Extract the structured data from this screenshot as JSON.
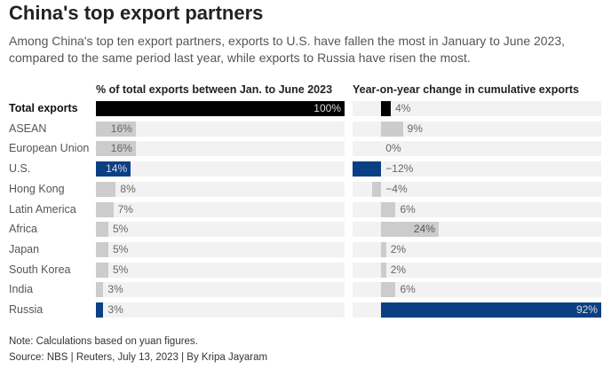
{
  "title": "China's top export partners",
  "subtitle": "Among China's top ten export partners, exports to U.S. have fallen the most in January to June 2023, compared to the same period last year, while exports to Russia have risen the most.",
  "note": "Note: Calculations based on yuan figures.",
  "source": "Source: NBS | Reuters, July 13, 2023 | By Kripa Jayaram",
  "colors": {
    "total": "#000000",
    "highlight": "#0b3f84",
    "default": "#cccccc",
    "background": "#f2f2f2"
  },
  "chart_data": [
    {
      "type": "bar",
      "orientation": "horizontal",
      "title": "% of total exports between Jan. to June 2023",
      "categories": [
        "Total exports",
        "ASEAN",
        "European Union",
        "U.S.",
        "Hong Kong",
        "Latin America",
        "Africa",
        "Japan",
        "South Korea",
        "India",
        "Russia"
      ],
      "values": [
        100,
        16,
        16,
        14,
        8,
        7,
        5,
        5,
        5,
        3,
        3
      ],
      "labels": [
        "100%",
        "16%",
        "16%",
        "14%",
        "8%",
        "7%",
        "5%",
        "5%",
        "5%",
        "3%",
        "3%"
      ],
      "xlim": [
        0,
        100
      ]
    },
    {
      "type": "bar",
      "orientation": "horizontal",
      "title": "Year-on-year change in cumulative exports",
      "categories": [
        "Total exports",
        "ASEAN",
        "European Union",
        "U.S.",
        "Hong Kong",
        "Latin America",
        "Africa",
        "Japan",
        "South Korea",
        "India",
        "Russia"
      ],
      "values": [
        4,
        9,
        0,
        -12,
        -4,
        6,
        24,
        2,
        2,
        6,
        92
      ],
      "labels": [
        "4%",
        "9%",
        "0%",
        "−12%",
        "−4%",
        "6%",
        "24%",
        "2%",
        "2%",
        "6%",
        "92%"
      ],
      "xlim": [
        -12,
        92
      ]
    }
  ]
}
